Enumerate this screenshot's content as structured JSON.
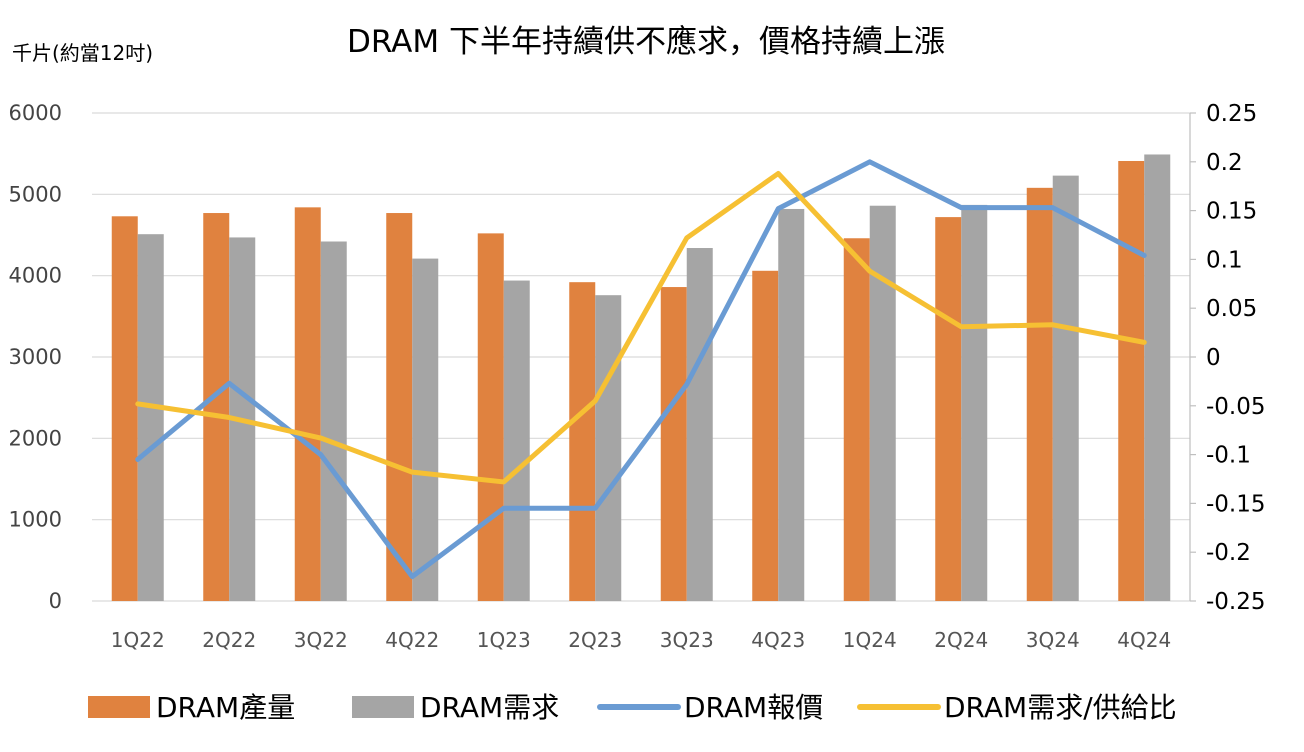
{
  "chart_data": {
    "type": "bar",
    "title": "DRAM 下半年持續供不應求，價格持續上漲",
    "ylabel": "千片(約當12吋)",
    "categories": [
      "1Q22",
      "2Q22",
      "3Q22",
      "4Q22",
      "1Q23",
      "2Q23",
      "3Q23",
      "4Q23",
      "1Q24",
      "2Q24",
      "3Q24",
      "4Q24"
    ],
    "ylim": [
      0,
      6000
    ],
    "yticks": [
      "6000",
      "5000",
      "4000",
      "3000",
      "2000",
      "1000",
      "0"
    ],
    "y2lim": [
      -0.25,
      0.25
    ],
    "y2ticks": [
      "0.25",
      "0.2",
      "0.15",
      "0.1",
      "0.05",
      "0",
      "-0.05",
      "-0.1",
      "-0.15",
      "-0.2",
      "-0.25"
    ],
    "grid": "horizontal",
    "legend_position": "bottom",
    "bar_series": [
      {
        "name": "DRAM產量",
        "color": "#E0823F",
        "values": [
          4730,
          4770,
          4840,
          4770,
          4520,
          3920,
          3860,
          4060,
          4460,
          4720,
          5080,
          5410
        ]
      },
      {
        "name": "DRAM需求",
        "color": "#A5A5A5",
        "values": [
          4510,
          4470,
          4420,
          4210,
          3940,
          3760,
          4340,
          4820,
          4860,
          4870,
          5230,
          5490
        ]
      }
    ],
    "line_series": [
      {
        "name": "DRAM報價",
        "color": "#6A9BD3",
        "axis": "right",
        "values": [
          -0.105,
          -0.027,
          -0.1,
          -0.225,
          -0.155,
          -0.155,
          -0.028,
          0.152,
          0.2,
          0.153,
          0.153,
          0.104
        ]
      },
      {
        "name": "DRAM需求/供給比",
        "color": "#F6C033",
        "axis": "right",
        "values": [
          -0.048,
          -0.062,
          -0.083,
          -0.118,
          -0.128,
          -0.045,
          0.122,
          0.188,
          0.088,
          0.031,
          0.033,
          0.015
        ]
      }
    ],
    "legend": [
      "DRAM產量",
      "DRAM需求",
      "DRAM報價",
      "DRAM需求/供給比"
    ]
  }
}
